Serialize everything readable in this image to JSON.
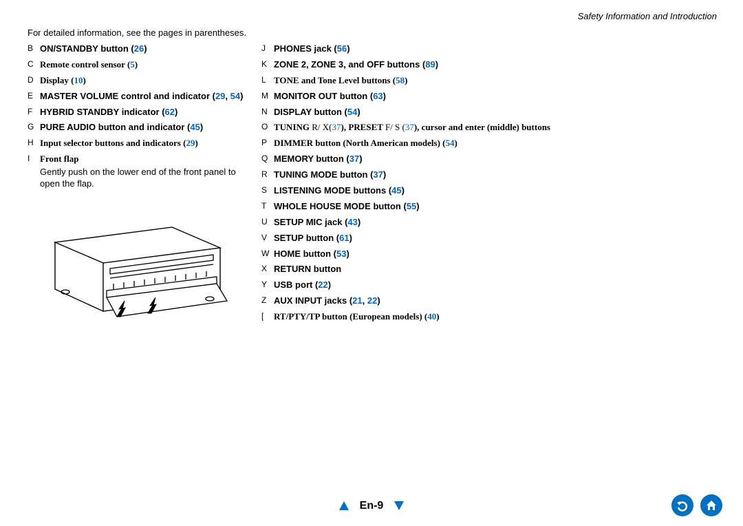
{
  "header": {
    "section": "Safety Information and Introduction"
  },
  "intro": "For detailed information, see the pages in parentheses.",
  "left_items": [
    {
      "m": "B",
      "pre": "",
      "bold": "ON/STANDBY button (",
      "link": "26",
      "post": ")"
    },
    {
      "m": "C",
      "pre": "",
      "bold": "Remote control sensor (",
      "serif": true,
      "link": "5",
      "post": ")"
    },
    {
      "m": "D",
      "pre": "",
      "bold": "Display (",
      "serif": true,
      "link": "10",
      "post": ")"
    },
    {
      "m": "E",
      "pre": "",
      "bold": "MASTER VOLUME control and indicator (",
      "link": "29",
      "link2": "54",
      "sep": ", ",
      "post": ")"
    },
    {
      "m": "F",
      "pre": "",
      "bold": "HYBRID STANDBY indicator (",
      "link": "62",
      "post": ")"
    },
    {
      "m": "G",
      "pre": "",
      "bold": "PURE AUDIO button and indicator (",
      "link": "45",
      "post": ")"
    },
    {
      "m": "H",
      "pre": "",
      "bold": "Input selector buttons and indicators (",
      "serif": true,
      "link": "29",
      "post": ")"
    }
  ],
  "front_flap": {
    "m": "I",
    "title": "Front flap",
    "text": "Gently push on the lower end of the front panel to open the flap."
  },
  "right_items": [
    {
      "m": "J",
      "bold": "PHONES jack (",
      "link": "56",
      "post": ")"
    },
    {
      "m": "K",
      "bold": "ZONE 2, ZONE 3, and OFF buttons (",
      "link": "89",
      "post": ")"
    },
    {
      "m": "L",
      "bold": "TONE and Tone Level buttons (",
      "serif": true,
      "link": "58",
      "post": ")"
    },
    {
      "m": "M",
      "bold": "MONITOR OUT button (",
      "link": "63",
      "post": ")"
    },
    {
      "m": "N",
      "bold": "DISPLAY button (",
      "link": "54",
      "post": ")"
    },
    {
      "m": "O",
      "bold1": "TUNING ",
      "plain1": "R/ X(",
      "link1": "37",
      "bold2": "), PRESET ",
      "plain2": "F/ S (",
      "link2b": "37",
      "bold3": "), cursor and enter (middle) buttons",
      "serif": true
    },
    {
      "m": "P",
      "bold": "DIMMER button (North American models) (",
      "serif": true,
      "link": "54",
      "post": ")"
    },
    {
      "m": "Q",
      "bold": "MEMORY button (",
      "link": "37",
      "post": ")"
    },
    {
      "m": "R",
      "bold": "TUNING MODE button (",
      "link": "37",
      "post": ")"
    },
    {
      "m": "S",
      "bold": "LISTENING MODE buttons (",
      "link": "45",
      "post": ")"
    },
    {
      "m": "T",
      "bold": "WHOLE HOUSE MODE button (",
      "link": "55",
      "post": ")"
    },
    {
      "m": "U",
      "bold": "SETUP MIC jack (",
      "link": "43",
      "post": ")"
    },
    {
      "m": "V",
      "bold": "SETUP button (",
      "link": "61",
      "post": ")"
    },
    {
      "m": "W",
      "bold": "HOME button (",
      "link": "53",
      "post": ")"
    },
    {
      "m": "X",
      "bold": "RETURN button",
      "post": ""
    },
    {
      "m": "Y",
      "bold": "USB port (",
      "link": "22",
      "post": ")"
    },
    {
      "m": "Z",
      "bold": "AUX INPUT jacks (",
      "link": "21",
      "link2": "22",
      "sep": ", ",
      "post": ")"
    },
    {
      "m": "[",
      "bold": "RT/PTY/TP button (European models) (",
      "serif": true,
      "link": "40",
      "post": ")"
    }
  ],
  "footer": {
    "page": "En-9"
  },
  "colors": {
    "link": "#0563c1",
    "nav": "#0070c0",
    "icon_bg": "#0070c0"
  }
}
